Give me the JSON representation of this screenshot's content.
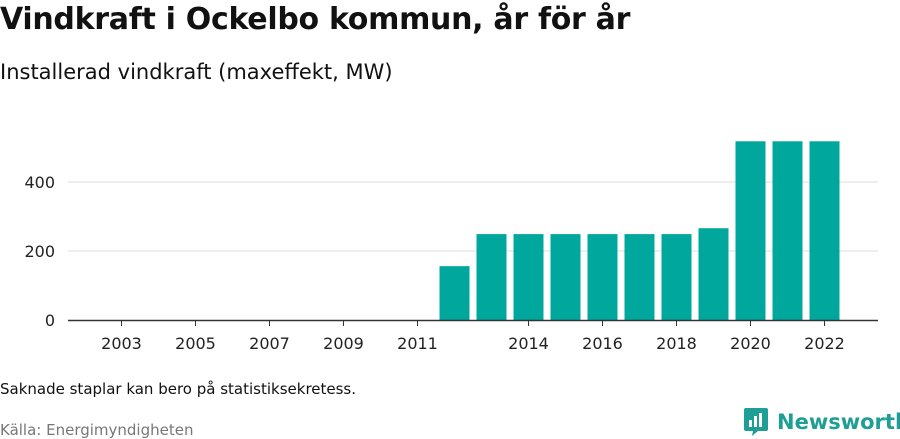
{
  "header": {
    "title": "Vindkraft i Ockelbo kommun, år för år",
    "subtitle": "Installerad vindkraft (maxeffekt, MW)"
  },
  "footer": {
    "note": "Saknade staplar kan bero på statistiksekretess.",
    "source": "Källa: Energimyndigheten",
    "brand": "Newsworthy"
  },
  "colors": {
    "bar": "#00a79d",
    "grid": "#dddddd",
    "axis": "#333333",
    "brand": "#1f9e95"
  },
  "chart_data": {
    "type": "bar",
    "categories": [
      "2003",
      "2004",
      "2005",
      "2006",
      "2007",
      "2008",
      "2009",
      "2010",
      "2011",
      "2012",
      "2013",
      "2014",
      "2015",
      "2016",
      "2017",
      "2018",
      "2019",
      "2020",
      "2021",
      "2022"
    ],
    "values": [
      null,
      null,
      null,
      null,
      null,
      null,
      null,
      null,
      null,
      156,
      249,
      249,
      249,
      249,
      249,
      249,
      266,
      518,
      518,
      518
    ],
    "xtick_labels": [
      "2003",
      "2005",
      "2007",
      "2009",
      "2011",
      "2014",
      "2016",
      "2018",
      "2020",
      "2022"
    ],
    "yticks": [
      0,
      200,
      400
    ],
    "ylim": [
      0,
      560
    ],
    "xlabel": "",
    "ylabel": "",
    "grid": true
  }
}
